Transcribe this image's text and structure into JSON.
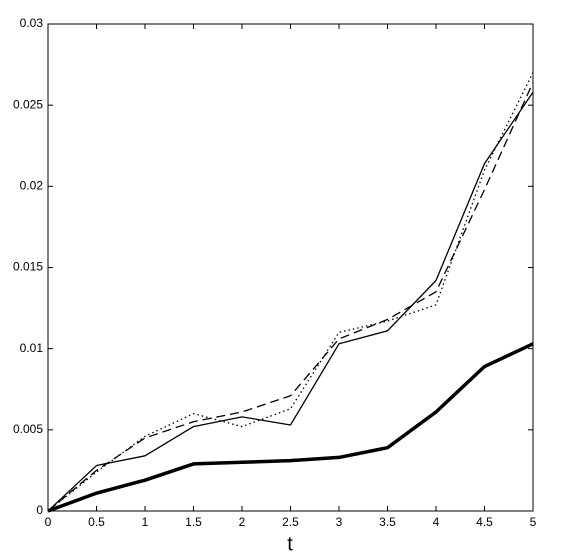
{
  "chart_data": {
    "type": "line",
    "x_label": "t",
    "x": [
      0,
      0.5,
      1,
      1.5,
      2,
      2.5,
      3,
      3.5,
      4,
      4.5,
      5
    ],
    "series": [
      {
        "color": "#000000",
        "line_style": "solid",
        "line_width": 1.3,
        "values": [
          0,
          0.0028,
          0.0034,
          0.0052,
          0.0058,
          0.0053,
          0.0103,
          0.0111,
          0.0142,
          0.0214,
          0.0258
        ]
      },
      {
        "color": "#000000",
        "line_style": "dashed",
        "line_width": 1.3,
        "values": [
          0,
          0.0025,
          0.0045,
          0.0055,
          0.0061,
          0.0071,
          0.0106,
          0.0118,
          0.0135,
          0.0198,
          0.0264
        ]
      },
      {
        "color": "#000000",
        "line_style": "dotted",
        "line_width": 1.3,
        "values": [
          0,
          0.0024,
          0.0046,
          0.006,
          0.0052,
          0.0063,
          0.011,
          0.0117,
          0.0127,
          0.021,
          0.027
        ]
      },
      {
        "color": "#000000",
        "line_style": "solid",
        "line_width": 3.5,
        "values": [
          0,
          0.0011,
          0.0019,
          0.0029,
          0.003,
          0.0031,
          0.0033,
          0.0039,
          0.0061,
          0.0089,
          0.0103
        ]
      }
    ],
    "xlim": [
      0,
      5
    ],
    "xticks": [
      0,
      0.5,
      1,
      1.5,
      2,
      2.5,
      3,
      3.5,
      4,
      4.5,
      5
    ],
    "ylim": [
      0,
      0.03
    ],
    "yticks": [
      0,
      0.005,
      0.01,
      0.015,
      0.02,
      0.025,
      0.03
    ],
    "grid": false
  }
}
